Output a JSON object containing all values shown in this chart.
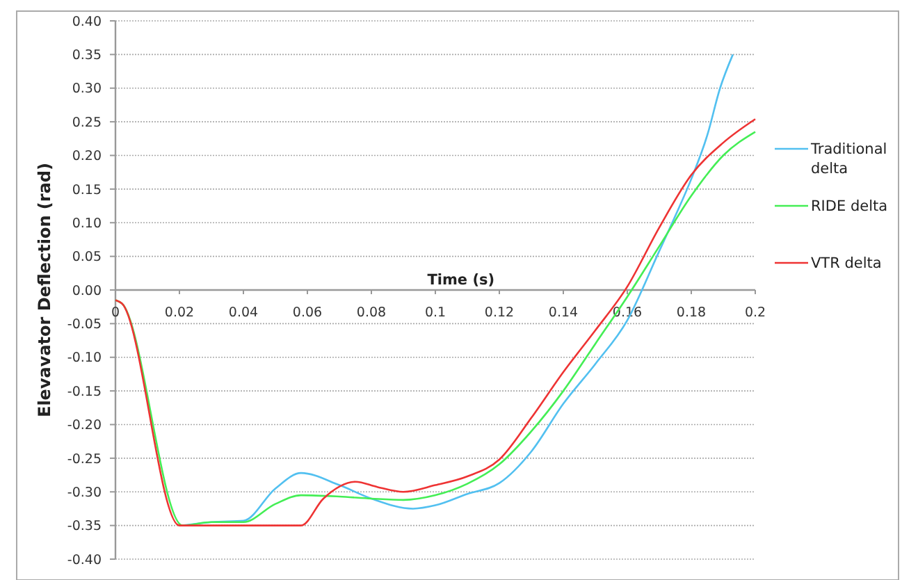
{
  "chart_data": {
    "type": "line",
    "xlabel": "Time (s)",
    "ylabel": "Elevavator Deflection (rad)",
    "xlim": [
      0,
      0.2
    ],
    "ylim": [
      -0.4,
      0.4
    ],
    "xticks": [
      0,
      0.02,
      0.04,
      0.06,
      0.08,
      0.1,
      0.12,
      0.14,
      0.16,
      0.18,
      0.2
    ],
    "yticks": [
      {
        "value": 0.4,
        "label": "0.40"
      },
      {
        "value": 0.35,
        "label": "0.35"
      },
      {
        "value": 0.3,
        "label": "0.30"
      },
      {
        "value": 0.25,
        "label": "0.25"
      },
      {
        "value": 0.2,
        "label": "0.20"
      },
      {
        "value": 0.15,
        "label": "0.15"
      },
      {
        "value": 0.1,
        "label": "0.10"
      },
      {
        "value": 0.05,
        "label": "0.05"
      },
      {
        "value": 0,
        "label": "0.00"
      },
      {
        "value": -0.05,
        "label": "-0.05"
      },
      {
        "value": -0.1,
        "label": "-0.10"
      },
      {
        "value": -0.15,
        "label": "-0.15"
      },
      {
        "value": -0.2,
        "label": "-0.20"
      },
      {
        "value": -0.25,
        "label": "-0.25"
      },
      {
        "value": -0.3,
        "label": "-0.30"
      },
      {
        "value": -0.35,
        "label": "-0.35"
      },
      {
        "value": -0.4,
        "label": "-0.40"
      }
    ],
    "grid": "y",
    "legend": "right",
    "marker": "none",
    "line_style": "solid",
    "series": [
      {
        "name": "Traditional delta",
        "color": "#52c0f0",
        "x": [
          0.021,
          0.03,
          0.04,
          0.05,
          0.058,
          0.07,
          0.08,
          0.093,
          0.1,
          0.11,
          0.12,
          0.13,
          0.14,
          0.15,
          0.16,
          0.17,
          0.175,
          0.18,
          0.185,
          0.189,
          0.193
        ],
        "values": [
          -0.35,
          -0.345,
          -0.343,
          -0.295,
          -0.272,
          -0.29,
          -0.31,
          -0.325,
          -0.32,
          -0.303,
          -0.287,
          -0.24,
          -0.169,
          -0.11,
          -0.045,
          0.058,
          0.11,
          0.165,
          0.23,
          0.3,
          0.35
        ]
      },
      {
        "name": "RIDE delta",
        "color": "#44ee55",
        "x": [
          0,
          0.002,
          0.021,
          0.03,
          0.04,
          0.05,
          0.058,
          0.07,
          0.08,
          0.09,
          0.1,
          0.11,
          0.12,
          0.13,
          0.14,
          0.15,
          0.16,
          0.17,
          0.18,
          0.19,
          0.2
        ],
        "values": [
          -0.015,
          -0.02,
          -0.35,
          -0.345,
          -0.345,
          -0.318,
          -0.305,
          -0.307,
          -0.31,
          -0.312,
          -0.305,
          -0.288,
          -0.259,
          -0.21,
          -0.15,
          -0.08,
          -0.01,
          0.065,
          0.14,
          0.2,
          0.235
        ]
      },
      {
        "name": "VTR delta",
        "color": "#ee3333",
        "x": [
          0,
          0.002,
          0.02,
          0.03,
          0.04,
          0.05,
          0.058,
          0.065,
          0.075,
          0.082,
          0.09,
          0.1,
          0.11,
          0.12,
          0.13,
          0.14,
          0.15,
          0.16,
          0.17,
          0.18,
          0.19,
          0.2
        ],
        "values": [
          -0.015,
          -0.02,
          -0.35,
          -0.35,
          -0.35,
          -0.35,
          -0.35,
          -0.31,
          -0.285,
          -0.293,
          -0.3,
          -0.29,
          -0.277,
          -0.252,
          -0.19,
          -0.122,
          -0.06,
          0.005,
          0.093,
          0.171,
          0.219,
          0.254
        ]
      }
    ]
  }
}
